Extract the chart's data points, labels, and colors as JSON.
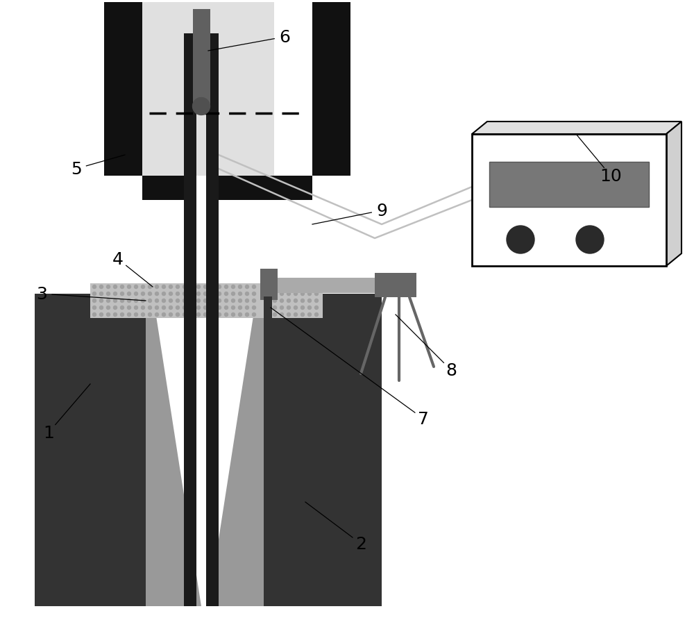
{
  "background_color": "#ffffff",
  "figure_width": 10.0,
  "figure_height": 9.04,
  "dark": "#1a1a1a",
  "near_black": "#111111",
  "dark_gray": "#333333",
  "mid_gray": "#666666",
  "light_gray": "#aaaaaa",
  "slag_gray": "#bbbbbb",
  "inner_gray": "#888888",
  "box_face": "#f5f5f5",
  "screen_gray": "#777777",
  "knob_dark": "#2a2a2a",
  "wire_color": "#bbbbbb",
  "tundish_inner": "#c8c8c8"
}
